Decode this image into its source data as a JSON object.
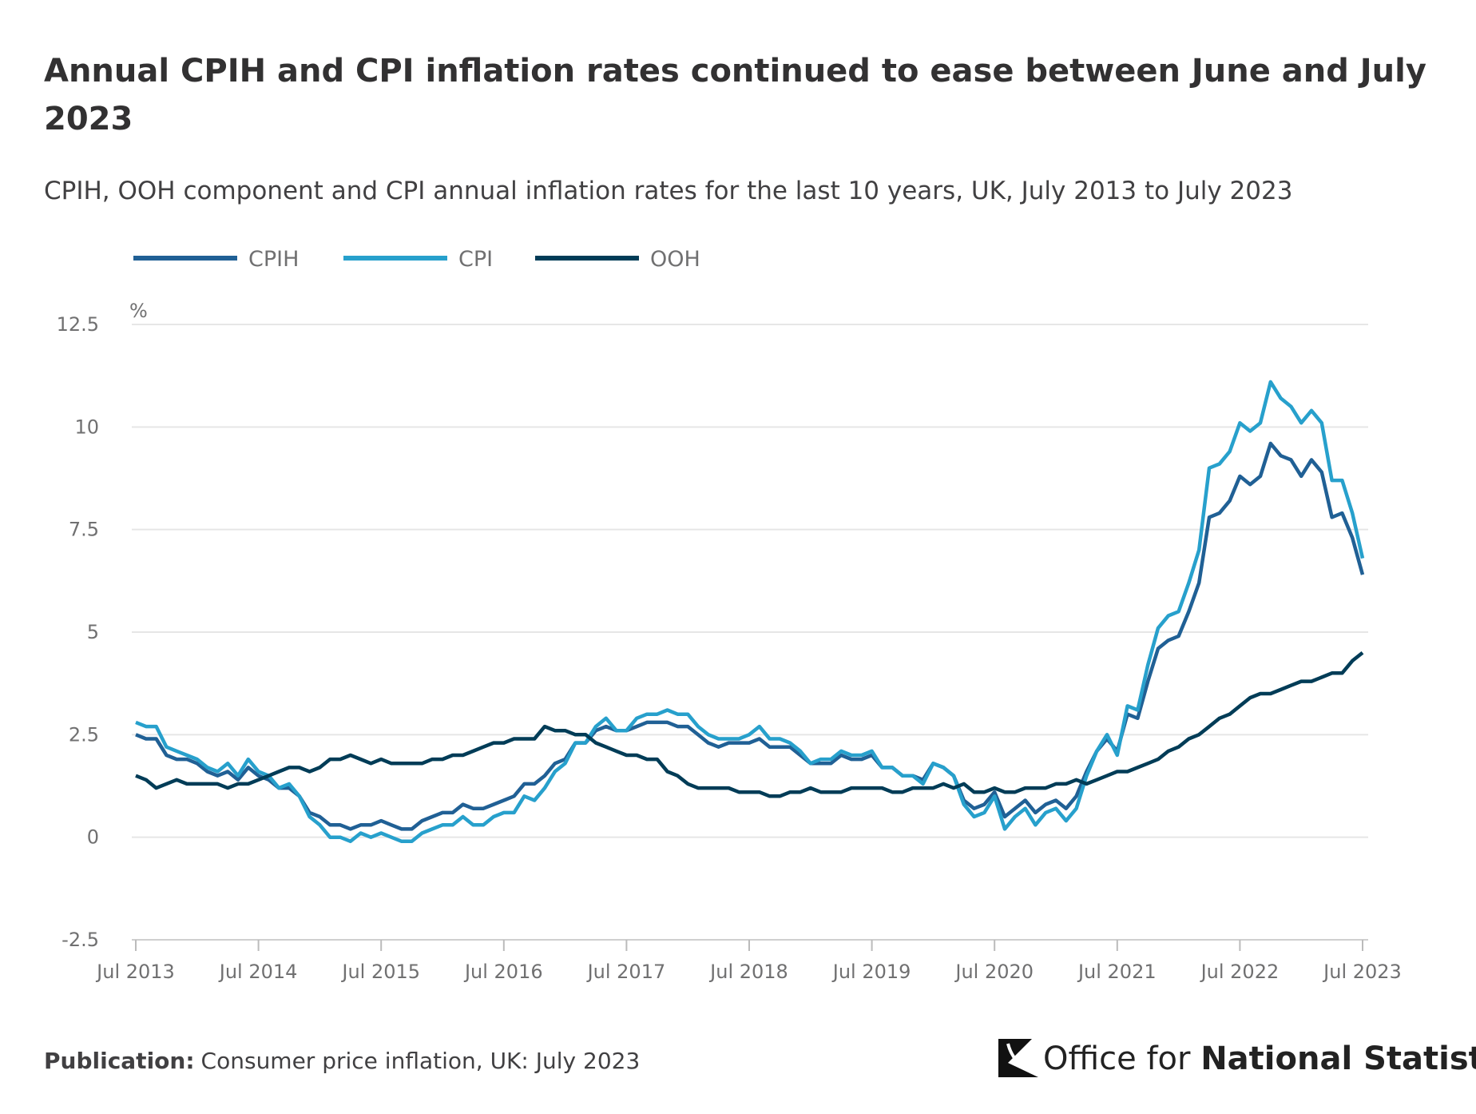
{
  "title_line1": "Annual CPIH and CPI inflation rates continued to ease between June and July",
  "title_line2": "2023",
  "subtitle": "CPIH, OOH component and CPI annual inflation rates for the last 10 years, UK, July 2013 to July 2023",
  "footer": {
    "label": "Publication:",
    "text": "Consumer price inflation, UK: July 2023"
  },
  "logo": {
    "text_light": "Office for ",
    "text_bold": "National Statistics"
  },
  "chart_data": {
    "type": "line",
    "ylabel": "%",
    "ylim": [
      -2.5,
      12.5
    ],
    "yticks": [
      "12.5",
      "10",
      "7.5",
      "5",
      "2.5",
      "0",
      "-2.5"
    ],
    "ytick_values": [
      12.5,
      10,
      7.5,
      5,
      2.5,
      0,
      -2.5
    ],
    "xticks": [
      "Jul 2013",
      "Jul 2014",
      "Jul 2015",
      "Jul 2016",
      "Jul 2017",
      "Jul 2018",
      "Jul 2019",
      "Jul 2020",
      "Jul 2021",
      "Jul 2022",
      "Jul 2023"
    ],
    "x_start": "Jul 2013",
    "x_end": "Jul 2023",
    "frequency": "monthly",
    "grid": true,
    "legend_position": "top-left",
    "series": [
      {
        "name": "CPIH",
        "color": "#206095",
        "values": [
          2.5,
          2.4,
          2.4,
          2.0,
          1.9,
          1.9,
          1.8,
          1.6,
          1.5,
          1.6,
          1.4,
          1.7,
          1.5,
          1.4,
          1.2,
          1.2,
          1.0,
          0.6,
          0.5,
          0.3,
          0.3,
          0.2,
          0.3,
          0.3,
          0.4,
          0.3,
          0.2,
          0.2,
          0.4,
          0.5,
          0.6,
          0.6,
          0.8,
          0.7,
          0.7,
          0.8,
          0.9,
          1.0,
          1.3,
          1.3,
          1.5,
          1.8,
          1.9,
          2.3,
          2.3,
          2.6,
          2.7,
          2.6,
          2.6,
          2.7,
          2.8,
          2.8,
          2.8,
          2.7,
          2.7,
          2.5,
          2.3,
          2.2,
          2.3,
          2.3,
          2.3,
          2.4,
          2.2,
          2.2,
          2.2,
          2.0,
          1.8,
          1.8,
          1.8,
          2.0,
          1.9,
          1.9,
          2.0,
          1.7,
          1.7,
          1.5,
          1.5,
          1.4,
          1.8,
          1.7,
          1.5,
          0.9,
          0.7,
          0.8,
          1.1,
          0.5,
          0.7,
          0.9,
          0.6,
          0.8,
          0.9,
          0.7,
          1.0,
          1.6,
          2.1,
          2.4,
          2.1,
          3.0,
          2.9,
          3.8,
          4.6,
          4.8,
          4.9,
          5.5,
          6.2,
          7.8,
          7.9,
          8.2,
          8.8,
          8.6,
          8.8,
          9.6,
          9.3,
          9.2,
          8.8,
          9.2,
          8.9,
          7.8,
          7.9,
          7.3,
          6.4
        ]
      },
      {
        "name": "CPI",
        "color": "#27a0cc",
        "values": [
          2.8,
          2.7,
          2.7,
          2.2,
          2.1,
          2.0,
          1.9,
          1.7,
          1.6,
          1.8,
          1.5,
          1.9,
          1.6,
          1.5,
          1.2,
          1.3,
          1.0,
          0.5,
          0.3,
          0.0,
          0.0,
          -0.1,
          0.1,
          0.0,
          0.1,
          0.0,
          -0.1,
          -0.1,
          0.1,
          0.2,
          0.3,
          0.3,
          0.5,
          0.3,
          0.3,
          0.5,
          0.6,
          0.6,
          1.0,
          0.9,
          1.2,
          1.6,
          1.8,
          2.3,
          2.3,
          2.7,
          2.9,
          2.6,
          2.6,
          2.9,
          3.0,
          3.0,
          3.1,
          3.0,
          3.0,
          2.7,
          2.5,
          2.4,
          2.4,
          2.4,
          2.5,
          2.7,
          2.4,
          2.4,
          2.3,
          2.1,
          1.8,
          1.9,
          1.9,
          2.1,
          2.0,
          2.0,
          2.1,
          1.7,
          1.7,
          1.5,
          1.5,
          1.3,
          1.8,
          1.7,
          1.5,
          0.8,
          0.5,
          0.6,
          1.0,
          0.2,
          0.5,
          0.7,
          0.3,
          0.6,
          0.7,
          0.4,
          0.7,
          1.5,
          2.1,
          2.5,
          2.0,
          3.2,
          3.1,
          4.2,
          5.1,
          5.4,
          5.5,
          6.2,
          7.0,
          9.0,
          9.1,
          9.4,
          10.1,
          9.9,
          10.1,
          11.1,
          10.7,
          10.5,
          10.1,
          10.4,
          10.1,
          8.7,
          8.7,
          7.9,
          6.8
        ]
      },
      {
        "name": "OOH",
        "color": "#003c57",
        "values": [
          1.5,
          1.4,
          1.2,
          1.3,
          1.4,
          1.3,
          1.3,
          1.3,
          1.3,
          1.2,
          1.3,
          1.3,
          1.4,
          1.5,
          1.6,
          1.7,
          1.7,
          1.6,
          1.7,
          1.9,
          1.9,
          2.0,
          1.9,
          1.8,
          1.9,
          1.8,
          1.8,
          1.8,
          1.8,
          1.9,
          1.9,
          2.0,
          2.0,
          2.1,
          2.2,
          2.3,
          2.3,
          2.4,
          2.4,
          2.4,
          2.7,
          2.6,
          2.6,
          2.5,
          2.5,
          2.3,
          2.2,
          2.1,
          2.0,
          2.0,
          1.9,
          1.9,
          1.6,
          1.5,
          1.3,
          1.2,
          1.2,
          1.2,
          1.2,
          1.1,
          1.1,
          1.1,
          1.0,
          1.0,
          1.1,
          1.1,
          1.2,
          1.1,
          1.1,
          1.1,
          1.2,
          1.2,
          1.2,
          1.2,
          1.1,
          1.1,
          1.2,
          1.2,
          1.2,
          1.3,
          1.2,
          1.3,
          1.1,
          1.1,
          1.2,
          1.1,
          1.1,
          1.2,
          1.2,
          1.2,
          1.3,
          1.3,
          1.4,
          1.3,
          1.4,
          1.5,
          1.6,
          1.6,
          1.7,
          1.8,
          1.9,
          2.1,
          2.2,
          2.4,
          2.5,
          2.7,
          2.9,
          3.0,
          3.2,
          3.4,
          3.5,
          3.5,
          3.6,
          3.7,
          3.8,
          3.8,
          3.9,
          4.0,
          4.0,
          4.3,
          4.5
        ]
      }
    ]
  }
}
